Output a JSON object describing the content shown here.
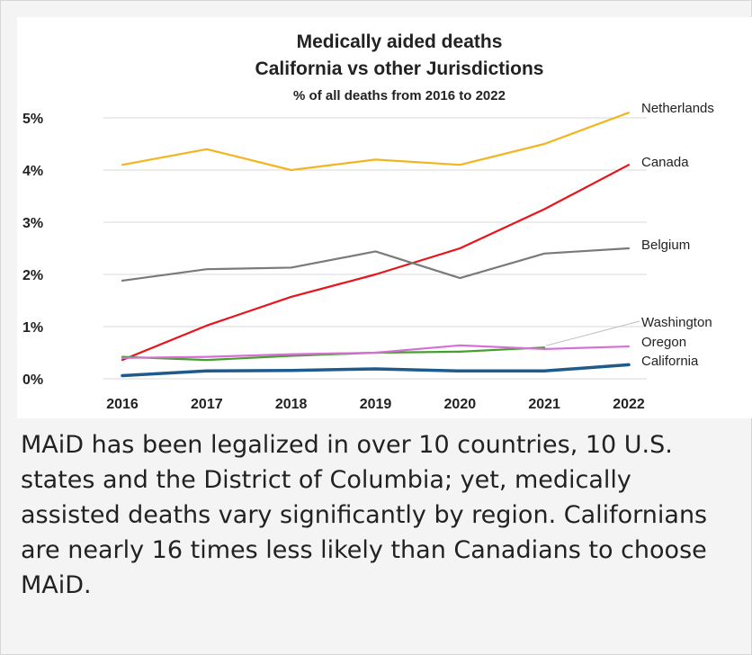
{
  "caption": "MAiD has been legalized in over 10 countries, 10 U.S. states and the District of Columbia; yet, medically assisted deaths vary significantly by region. Californians are nearly 16 times less likely than Canadians to choose MAiD.",
  "chart_data": {
    "type": "line",
    "title": "Medically aided deaths",
    "subtitle": "California vs other Jurisdictions",
    "subtitle2": "% of all deaths from 2016 to 2022",
    "xlabel": "",
    "ylabel": "",
    "x": [
      "2016",
      "2017",
      "2018",
      "2019",
      "2020",
      "2021",
      "2022"
    ],
    "ylim": [
      0,
      5
    ],
    "yticks": [
      0,
      1,
      2,
      3,
      4,
      5
    ],
    "ytick_labels": [
      "0%",
      "1%",
      "2%",
      "3%",
      "4%",
      "5%"
    ],
    "grid": true,
    "legend": "direct labels at line ends (right)",
    "series": [
      {
        "name": "Netherlands",
        "color": "#f2b51f",
        "values": [
          4.1,
          4.4,
          4.0,
          4.2,
          4.1,
          4.5,
          5.1
        ]
      },
      {
        "name": "Canada",
        "color": "#e8141c",
        "values": [
          0.36,
          1.02,
          1.57,
          2.0,
          2.5,
          3.25,
          4.1
        ]
      },
      {
        "name": "Belgium",
        "color": "#7a7a7a",
        "values": [
          1.88,
          2.1,
          2.13,
          2.44,
          1.93,
          2.4,
          2.5
        ]
      },
      {
        "name": "Washington",
        "color": "#44a02e",
        "values": [
          0.42,
          0.36,
          0.44,
          0.5,
          0.52,
          0.6,
          null
        ]
      },
      {
        "name": "Oregon",
        "color": "#d86fd6",
        "values": [
          0.4,
          0.42,
          0.47,
          0.5,
          0.64,
          0.57,
          0.62
        ]
      },
      {
        "name": "California",
        "color": "#1f5a8c",
        "values": [
          0.06,
          0.15,
          0.16,
          0.19,
          0.15,
          0.15,
          0.27
        ]
      }
    ]
  }
}
